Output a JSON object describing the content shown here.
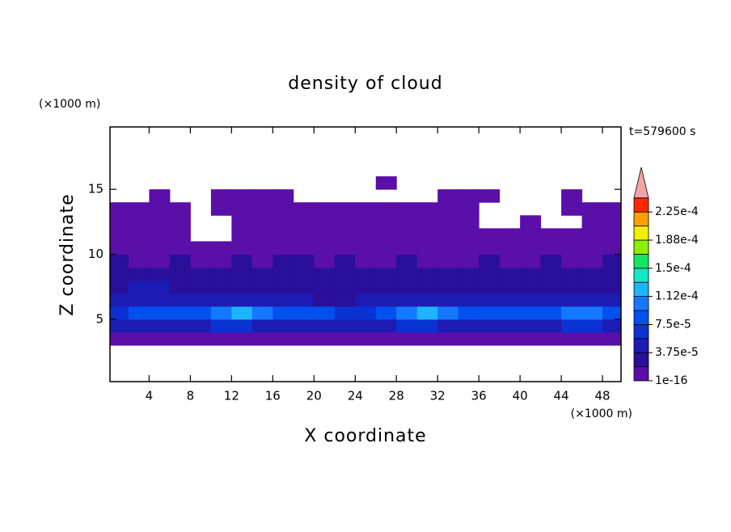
{
  "chart_data": {
    "type": "contour",
    "title": "density of cloud",
    "x_label": "X coordinate",
    "y_label": "Z coordinate",
    "x_unit": "(×1000 m)",
    "y_unit": "(×1000 m)",
    "annotation": "t=579600 s",
    "xlim": [
      0.2,
      49.8
    ],
    "ylim": [
      0.2,
      19.8
    ],
    "xticks": [
      4,
      8,
      12,
      16,
      20,
      24,
      28,
      32,
      36,
      40,
      44,
      48
    ],
    "yticks": [
      5,
      10,
      15
    ],
    "x": [
      1,
      3,
      5,
      7,
      9,
      11,
      13,
      15,
      17,
      19,
      21,
      23,
      25,
      27,
      29,
      31,
      33,
      35,
      37,
      39,
      41,
      43,
      45,
      47,
      49
    ],
    "y": [
      0.5,
      1.5,
      2.5,
      3.5,
      4.5,
      5.5,
      6.5,
      7.5,
      8.5,
      9.5,
      10.5,
      11.5,
      12.5,
      13.5,
      14.5,
      15.5,
      16.5,
      17.5,
      18.5,
      19.5
    ],
    "z": [
      [
        null,
        null,
        null,
        null,
        null,
        null,
        null,
        null,
        null,
        null,
        null,
        null,
        null,
        null,
        null,
        null,
        null,
        null,
        null,
        null,
        null,
        null,
        null,
        null,
        null
      ],
      [
        null,
        null,
        null,
        null,
        null,
        null,
        null,
        null,
        null,
        null,
        null,
        null,
        null,
        null,
        null,
        null,
        null,
        null,
        null,
        null,
        null,
        null,
        null,
        null,
        null
      ],
      [
        null,
        null,
        null,
        null,
        null,
        null,
        null,
        null,
        null,
        null,
        null,
        null,
        null,
        null,
        null,
        null,
        null,
        null,
        null,
        null,
        null,
        null,
        null,
        null,
        null
      ],
      [
        2e-06,
        2e-06,
        2e-06,
        2e-06,
        2e-06,
        2e-06,
        2e-06,
        2e-06,
        2e-06,
        2e-06,
        2e-06,
        2e-06,
        2e-06,
        2e-06,
        2e-06,
        2e-06,
        2e-06,
        2e-06,
        2e-06,
        2e-06,
        2e-06,
        2e-06,
        2e-06,
        2e-06,
        2e-06
      ],
      [
        4e-05,
        4e-05,
        4.5e-05,
        5e-05,
        5e-05,
        6e-05,
        6e-05,
        5e-05,
        4.5e-05,
        5e-05,
        4.5e-05,
        4e-05,
        4e-05,
        4.5e-05,
        6e-05,
        6.5e-05,
        5.5e-05,
        4.5e-05,
        5e-05,
        5e-05,
        4.5e-05,
        5e-05,
        6e-05,
        6.5e-05,
        5.5e-05
      ],
      [
        7e-05,
        7.5e-05,
        8e-05,
        8e-05,
        8.5e-05,
        0.000105,
        0.00012,
        0.0001,
        8e-05,
        8.5e-05,
        7.5e-05,
        7e-05,
        7e-05,
        8e-05,
        0.000105,
        0.00012,
        0.000105,
        8e-05,
        8.5e-05,
        8e-05,
        8e-05,
        8.5e-05,
        0.0001,
        0.00011,
        9e-05
      ],
      [
        4e-05,
        4.5e-05,
        4e-05,
        4e-05,
        4.5e-05,
        5e-05,
        5.5e-05,
        5e-05,
        4e-05,
        4e-05,
        3.5e-05,
        3.5e-05,
        4e-05,
        4e-05,
        5e-05,
        5.5e-05,
        5e-05,
        4e-05,
        4e-05,
        4e-05,
        4e-05,
        4.5e-05,
        4.5e-05,
        5e-05,
        4.5e-05
      ],
      [
        3.5e-05,
        4e-05,
        4.5e-05,
        3e-05,
        2.5e-05,
        2.5e-05,
        3e-05,
        2.5e-05,
        2.5e-05,
        3e-05,
        2.5e-05,
        2.5e-05,
        3e-05,
        3e-05,
        2.5e-05,
        2.5e-05,
        3e-05,
        3e-05,
        2.5e-05,
        2.5e-05,
        3e-05,
        2.5e-05,
        3e-05,
        3e-05,
        2.5e-05
      ],
      [
        2.5e-05,
        2.5e-05,
        2.5e-05,
        2e-05,
        2e-05,
        2e-05,
        2.5e-05,
        2e-05,
        2e-05,
        2.5e-05,
        2e-05,
        2e-05,
        2e-05,
        2e-05,
        2e-05,
        2.5e-05,
        2e-05,
        2e-05,
        2e-05,
        2.5e-05,
        2e-05,
        2e-05,
        2e-05,
        2e-05,
        2e-05
      ],
      [
        2e-05,
        1.5e-05,
        1.5e-05,
        2e-05,
        1.5e-05,
        1.5e-05,
        2e-05,
        1.5e-05,
        2e-05,
        2e-05,
        1.5e-05,
        2e-05,
        1.5e-05,
        1.5e-05,
        2e-05,
        1.5e-05,
        1.5e-05,
        1.5e-05,
        2e-05,
        1.5e-05,
        1.5e-05,
        2e-05,
        1.5e-05,
        1.5e-05,
        2e-05
      ],
      [
        1e-05,
        1e-05,
        1e-05,
        1e-05,
        1e-05,
        1e-05,
        1e-05,
        1e-05,
        1e-05,
        1e-05,
        1e-05,
        1e-05,
        1e-05,
        1e-05,
        1e-05,
        1e-05,
        1e-05,
        1e-05,
        1e-05,
        1e-05,
        1e-05,
        1e-05,
        1e-05,
        1e-05,
        1e-05
      ],
      [
        5e-06,
        5e-06,
        5e-06,
        5e-06,
        null,
        null,
        5e-06,
        5e-06,
        5e-06,
        5e-06,
        5e-06,
        5e-06,
        5e-06,
        5e-06,
        5e-06,
        5e-06,
        5e-06,
        5e-06,
        5e-06,
        5e-06,
        5e-06,
        5e-06,
        5e-06,
        5e-06,
        5e-06
      ],
      [
        5e-06,
        5e-06,
        5e-06,
        5e-06,
        null,
        null,
        5e-06,
        5e-06,
        5e-06,
        5e-06,
        5e-06,
        5e-06,
        5e-06,
        5e-06,
        5e-06,
        5e-06,
        5e-06,
        5e-06,
        null,
        null,
        5e-06,
        null,
        null,
        5e-06,
        5e-06
      ],
      [
        5e-06,
        5e-06,
        5e-06,
        5e-06,
        null,
        5e-06,
        5e-06,
        5e-06,
        5e-06,
        5e-06,
        5e-06,
        5e-06,
        5e-06,
        5e-06,
        5e-06,
        5e-06,
        5e-06,
        5e-06,
        null,
        null,
        null,
        null,
        5e-06,
        5e-06,
        5e-06
      ],
      [
        null,
        null,
        5e-06,
        null,
        null,
        5e-06,
        5e-06,
        5e-06,
        5e-06,
        null,
        null,
        null,
        null,
        null,
        null,
        null,
        5e-06,
        5e-06,
        5e-06,
        null,
        null,
        null,
        5e-06,
        null,
        null
      ],
      [
        null,
        null,
        null,
        null,
        null,
        null,
        null,
        null,
        null,
        null,
        null,
        null,
        null,
        5e-06,
        null,
        null,
        null,
        null,
        null,
        null,
        null,
        null,
        null,
        null,
        null
      ],
      [
        null,
        null,
        null,
        null,
        null,
        null,
        null,
        null,
        null,
        null,
        null,
        null,
        null,
        null,
        null,
        null,
        null,
        null,
        null,
        null,
        null,
        null,
        null,
        null,
        null
      ],
      [
        null,
        null,
        null,
        null,
        null,
        null,
        null,
        null,
        null,
        null,
        null,
        null,
        null,
        null,
        null,
        null,
        null,
        null,
        null,
        null,
        null,
        null,
        null,
        null,
        null
      ],
      [
        null,
        null,
        null,
        null,
        null,
        null,
        null,
        null,
        null,
        null,
        null,
        null,
        null,
        null,
        null,
        null,
        null,
        null,
        null,
        null,
        null,
        null,
        null,
        null,
        null
      ],
      [
        null,
        null,
        null,
        null,
        null,
        null,
        null,
        null,
        null,
        null,
        null,
        null,
        null,
        null,
        null,
        null,
        null,
        null,
        null,
        null,
        null,
        null,
        null,
        null,
        null
      ]
    ],
    "levels": [
      1e-16,
      1.875e-05,
      3.75e-05,
      5.625e-05,
      7.5e-05,
      9.375e-05,
      0.0001125,
      0.00013125,
      0.00015,
      0.00016875,
      0.0001875,
      0.00020625,
      0.000225,
      0.00024375
    ],
    "colors": [
      "#5a0fa8",
      "#2a0f9a",
      "#1c1cb4",
      "#0a32d2",
      "#0050f0",
      "#1478ff",
      "#1eb4ff",
      "#14e6c8",
      "#14e664",
      "#8cf000",
      "#f0f000",
      "#ffa000",
      "#ff2800"
    ],
    "extend_color": "#f4a4a4",
    "cbar_ticks": [
      {
        "value": 1e-16,
        "label": "1e-16"
      },
      {
        "value": 3.75e-05,
        "label": "3.75e-5"
      },
      {
        "value": 7.5e-05,
        "label": "7.5e-5"
      },
      {
        "value": 0.0001125,
        "label": "1.12e-4"
      },
      {
        "value": 0.00015,
        "label": "1.5e-4"
      },
      {
        "value": 0.0001875,
        "label": "1.88e-4"
      },
      {
        "value": 0.000225,
        "label": "2.25e-4"
      }
    ]
  }
}
